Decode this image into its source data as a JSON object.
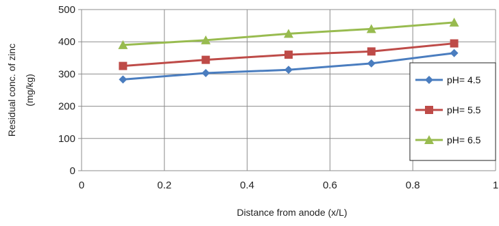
{
  "chart_data": {
    "type": "line",
    "title": "",
    "xlabel": "Distance from anode (x/L)",
    "ylabel_lines": [
      "Residual conc. of zinc",
      "(mg/kg)"
    ],
    "xlim": [
      0,
      1
    ],
    "ylim": [
      0,
      500
    ],
    "x_ticks": [
      0,
      0.2,
      0.4,
      0.6,
      0.8,
      1
    ],
    "x_tick_labels": [
      "0",
      "0.2",
      "0.4",
      "0.6",
      "0.8",
      "1"
    ],
    "y_ticks": [
      0,
      100,
      200,
      300,
      400,
      500
    ],
    "y_tick_labels": [
      "0",
      "100",
      "200",
      "300",
      "400",
      "500"
    ],
    "grid": true,
    "legend_position": "right",
    "x": [
      0.1,
      0.3,
      0.5,
      0.7,
      0.9
    ],
    "series": [
      {
        "name": "pH= 4.5",
        "values": [
          283,
          303,
          313,
          333,
          365
        ],
        "color": "#4a7dbf",
        "marker": "diamond"
      },
      {
        "name": "pH= 5.5",
        "values": [
          325,
          344,
          360,
          370,
          395
        ],
        "color": "#be4b48",
        "marker": "square"
      },
      {
        "name": "pH= 6.5",
        "values": [
          390,
          405,
          425,
          440,
          460
        ],
        "color": "#98bb4f",
        "marker": "triangle"
      }
    ]
  }
}
